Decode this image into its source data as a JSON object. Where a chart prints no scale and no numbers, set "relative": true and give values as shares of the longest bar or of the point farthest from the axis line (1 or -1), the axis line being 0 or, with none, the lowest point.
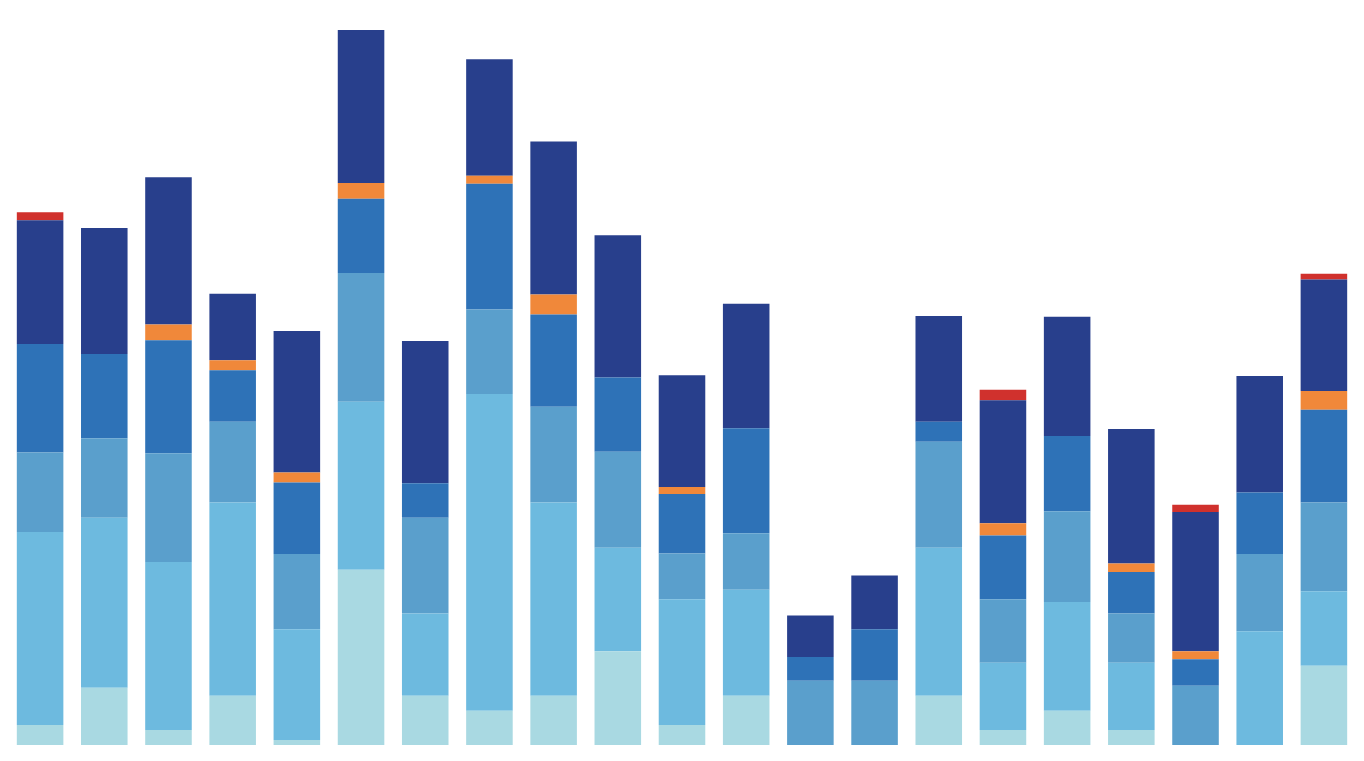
{
  "chart_data": {
    "type": "bar",
    "relative": true,
    "stacked": true,
    "categories": [
      null,
      null,
      null,
      null,
      null,
      null,
      null,
      null,
      null,
      null,
      null,
      null,
      null,
      null,
      null,
      null,
      null,
      null,
      null,
      null,
      null
    ],
    "series": [
      {
        "color": "#a9d9e2",
        "values": [
          0.028,
          0.08,
          0.021,
          0.069,
          0.007,
          0.245,
          0.069,
          0.048,
          0.069,
          0.131,
          0.028,
          0.069,
          0,
          0,
          0.069,
          0.021,
          0.048,
          0.021,
          0,
          0,
          0.111
        ]
      },
      {
        "color": "#6dbadf",
        "values": [
          0.27,
          0.238,
          0.235,
          0.27,
          0.155,
          0.235,
          0.115,
          0.443,
          0.27,
          0.145,
          0.176,
          0.148,
          0,
          0,
          0.207,
          0.094,
          0.152,
          0.094,
          0,
          0.159,
          0.104
        ]
      },
      {
        "color": "#5a9fcc",
        "values": [
          0.111,
          0.111,
          0.152,
          0.113,
          0.105,
          0.18,
          0.134,
          0.118,
          0.134,
          0.134,
          0.064,
          0.079,
          0.09,
          0.09,
          0.148,
          0.089,
          0.127,
          0.069,
          0.083,
          0.108,
          0.124
        ]
      },
      {
        "color": "#2e72b7",
        "values": [
          0.152,
          0.118,
          0.158,
          0.072,
          0.1,
          0.104,
          0.048,
          0.176,
          0.129,
          0.104,
          0.083,
          0.147,
          0.033,
          0.072,
          0.028,
          0.089,
          0.105,
          0.058,
          0.037,
          0.086,
          0.13
        ]
      },
      {
        "color": "#f0883a",
        "values": [
          0,
          0,
          0.022,
          0.014,
          0.014,
          0.022,
          0,
          0.011,
          0.028,
          0,
          0.01,
          0,
          0,
          0,
          0,
          0.017,
          0,
          0.012,
          0.011,
          0,
          0.026
        ]
      },
      {
        "color": "#283f8c",
        "values": [
          0.173,
          0.176,
          0.206,
          0.093,
          0.198,
          0.214,
          0.199,
          0.163,
          0.214,
          0.199,
          0.156,
          0.174,
          0.058,
          0.075,
          0.148,
          0.172,
          0.167,
          0.188,
          0.195,
          0.163,
          0.156
        ]
      },
      {
        "color": "#d0312d",
        "values": [
          0.011,
          0,
          0,
          0,
          0,
          0,
          0,
          0,
          0,
          0,
          0,
          0,
          0,
          0,
          0,
          0.015,
          0,
          0,
          0.01,
          0,
          0.008
        ]
      }
    ]
  }
}
